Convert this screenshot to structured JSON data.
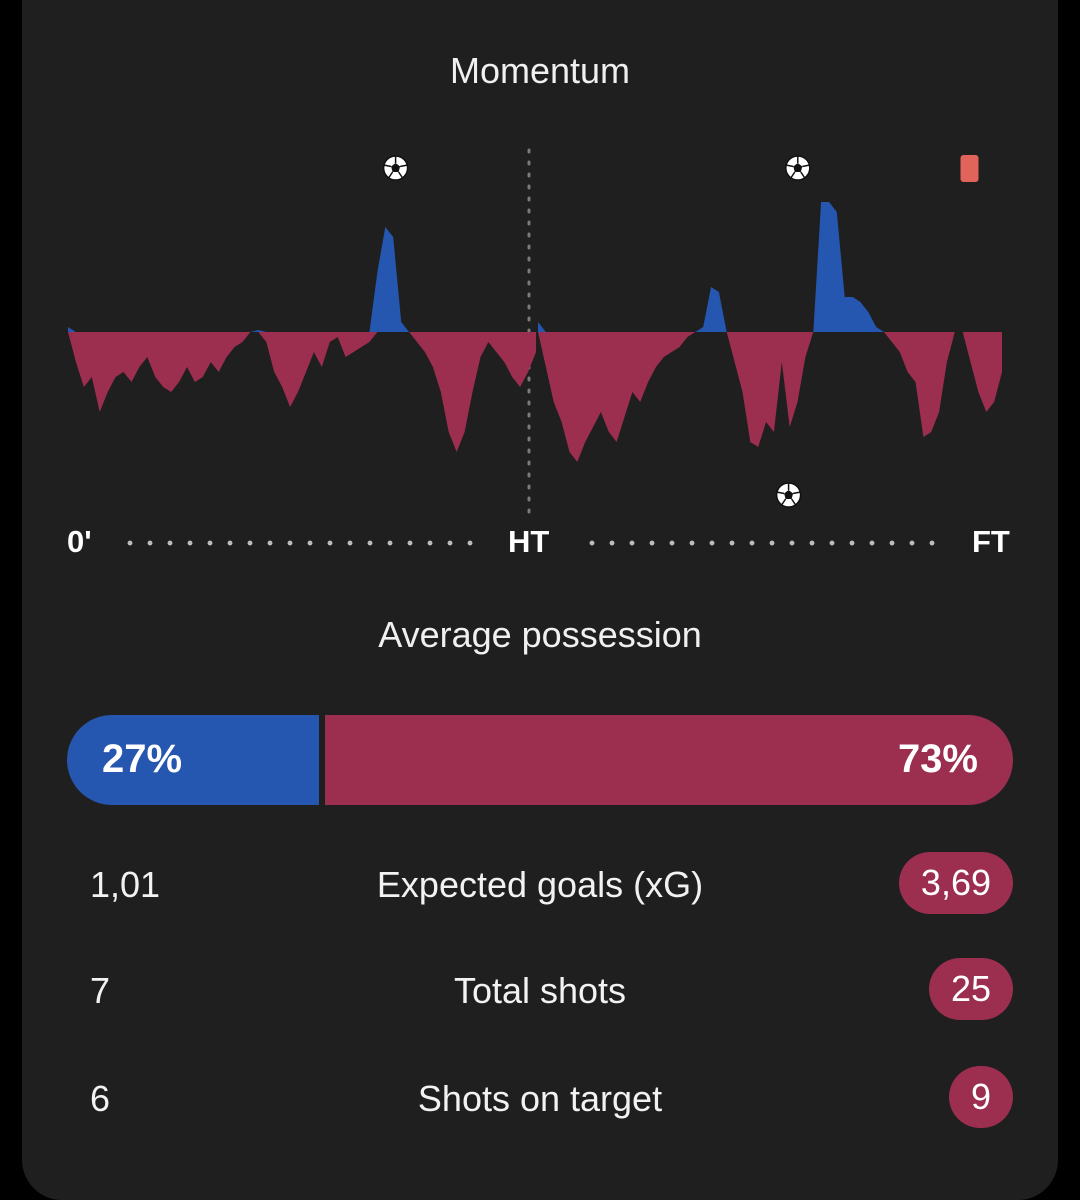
{
  "momentum": {
    "title": "Momentum",
    "axis": {
      "start": "0'",
      "half": "HT",
      "end": "FT"
    },
    "colors": {
      "home": "#2556b0",
      "away": "#9c2e50",
      "card": "#e0645a"
    },
    "events": [
      {
        "type": "goal",
        "team": "home",
        "half": 1,
        "position": 0.7
      },
      {
        "type": "goal",
        "team": "home",
        "half": 2,
        "position": 0.56
      },
      {
        "type": "goal",
        "team": "away",
        "half": 2,
        "position": 0.54
      },
      {
        "type": "red-card",
        "team": "home",
        "half": 2,
        "position": 0.93
      }
    ],
    "chart_data": {
      "type": "area",
      "note_units": "signed momentum, positive = home (blue), negative = away (red)",
      "first_half": [
        5,
        -30,
        -55,
        -45,
        -80,
        -60,
        -45,
        -40,
        -50,
        -35,
        -25,
        -45,
        -55,
        -60,
        -50,
        -35,
        -50,
        -45,
        -30,
        -40,
        -25,
        -15,
        -10,
        0,
        2,
        -10,
        -40,
        -55,
        -75,
        -60,
        -40,
        -20,
        -35,
        -10,
        -5,
        -25,
        -20,
        -15,
        -10,
        60,
        105,
        95,
        10,
        0,
        -10,
        -20,
        -35,
        -60,
        -100,
        -120,
        -100,
        -60,
        -25,
        -10,
        -20,
        -30,
        -45,
        -55,
        -40,
        -20
      ],
      "second_half": [
        10,
        -35,
        -70,
        -90,
        -120,
        -130,
        -110,
        -95,
        -80,
        -100,
        -110,
        -85,
        -60,
        -70,
        -50,
        -35,
        -25,
        -20,
        -15,
        -5,
        0,
        5,
        45,
        40,
        0,
        -30,
        -60,
        -110,
        -115,
        -90,
        -100,
        -30,
        -95,
        -70,
        -25,
        0,
        130,
        130,
        120,
        35,
        35,
        30,
        20,
        5,
        0,
        -10,
        -20,
        -40,
        -50,
        -105,
        -100,
        -80,
        -30,
        0,
        0,
        -30,
        -60,
        -80,
        -70,
        -40
      ]
    }
  },
  "possession": {
    "title": "Average possession",
    "home_value": 27,
    "away_value": 73,
    "home_label": "27%",
    "away_label": "73%"
  },
  "stats": [
    {
      "label": "Expected goals (xG)",
      "home": "1,01",
      "away": "3,69"
    },
    {
      "label": "Total shots",
      "home": "7",
      "away": "25"
    },
    {
      "label": "Shots on target",
      "home": "6",
      "away": "9"
    }
  ]
}
